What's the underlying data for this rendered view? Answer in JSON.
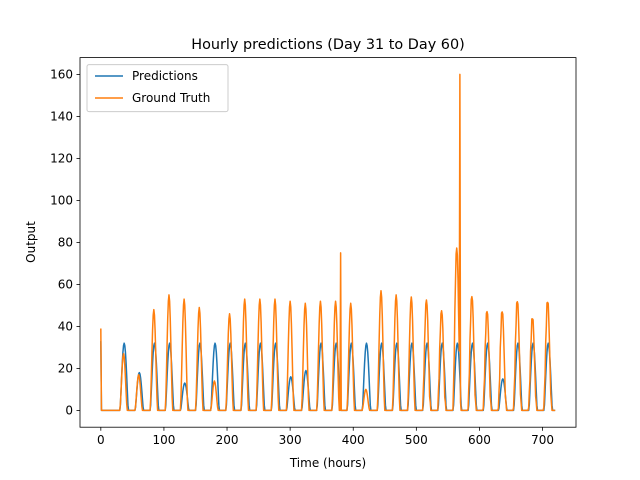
{
  "chart_data": {
    "type": "line",
    "title": "Hourly predictions (Day 31 to Day 60)",
    "xlabel": "Time (hours)",
    "ylabel": "Output",
    "xlim": [
      -33,
      753
    ],
    "ylim": [
      -8,
      168
    ],
    "xticks": [
      0,
      100,
      200,
      300,
      400,
      500,
      600,
      700
    ],
    "yticks": [
      0,
      20,
      40,
      60,
      80,
      100,
      120,
      140,
      160
    ],
    "grid": false,
    "legend_position": "top-left",
    "series": [
      {
        "name": "Predictions",
        "color": "#1f77b4",
        "day_peaks": [
          0,
          32,
          18,
          32,
          32,
          13,
          32,
          32,
          32,
          32,
          32,
          32,
          16,
          19,
          32,
          32,
          32,
          32,
          32,
          32,
          32,
          32,
          32,
          32,
          32,
          32,
          15,
          32,
          32,
          32,
          32,
          32,
          22
        ]
      },
      {
        "name": "Ground Truth",
        "color": "#ff7f0e",
        "day_peaks": [
          0,
          27,
          17,
          48,
          55,
          53,
          49,
          14,
          46,
          53,
          53,
          53,
          52,
          51,
          52,
          52,
          51,
          10,
          57,
          55,
          54,
          50,
          45,
          75,
          52,
          45,
          45,
          50,
          42,
          50,
          50,
          40,
          44
        ]
      }
    ],
    "annotations": [
      {
        "series": "Ground Truth",
        "x": 569,
        "y": 160
      },
      {
        "series": "Ground Truth",
        "x": 380,
        "y": 75
      },
      {
        "series": "Predictions",
        "x": 0,
        "y": 33
      },
      {
        "series": "Ground Truth",
        "x": 0,
        "y": 39
      }
    ]
  }
}
